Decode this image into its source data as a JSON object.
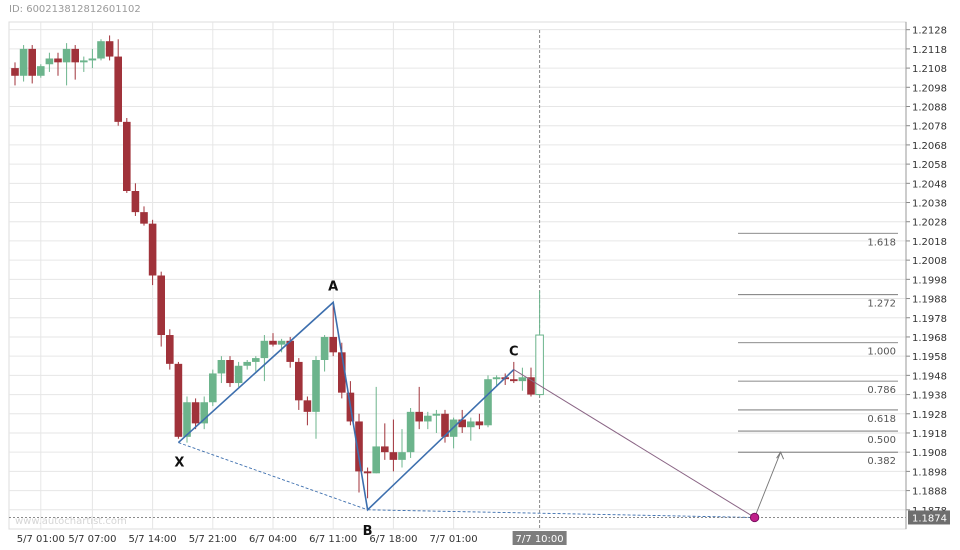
{
  "header": {
    "id_prefix": "ID: ",
    "id_value": "600213812812601102"
  },
  "watermark": "www.autochartist.com",
  "colors": {
    "bull": "#6cb48c",
    "bear": "#a0323a",
    "pattern": "#3d6fae",
    "projection": "#8a6585",
    "target": "#c0208a",
    "grid": "#e6e6e6",
    "axis_text": "#333333",
    "fib_line": "#666666"
  },
  "chart_data": {
    "type": "candlestick",
    "title": "",
    "ylim": [
      1.1868,
      1.2132
    ],
    "y_ticks": [
      "1.2128",
      "1.2118",
      "1.2108",
      "1.2098",
      "1.2088",
      "1.2078",
      "1.2068",
      "1.2058",
      "1.2048",
      "1.2038",
      "1.2028",
      "1.2018",
      "1.2008",
      "1.1998",
      "1.1988",
      "1.1978",
      "1.1968",
      "1.1958",
      "1.1948",
      "1.1938",
      "1.1928",
      "1.1918",
      "1.1908",
      "1.1898",
      "1.1888",
      "1.1878"
    ],
    "x_ticks": [
      "5/7 01:00",
      "5/7 07:00",
      "5/7 14:00",
      "5/7 21:00",
      "6/7 04:00",
      "6/7 11:00",
      "6/7 18:00",
      "7/7 01:00",
      "7/7 10:00"
    ],
    "x_tick_index": [
      3,
      9,
      16,
      23,
      30,
      37,
      44,
      51,
      61
    ],
    "current_time_label": "7/7 10:00",
    "current_price_label": "1.1874",
    "candles": [
      {
        "o": 1.2108,
        "h": 1.2111,
        "l": 1.2099,
        "c": 1.2104
      },
      {
        "o": 1.2104,
        "h": 1.212,
        "l": 1.2101,
        "c": 1.2118
      },
      {
        "o": 1.2118,
        "h": 1.212,
        "l": 1.21,
        "c": 1.2104
      },
      {
        "o": 1.2104,
        "h": 1.211,
        "l": 1.2103,
        "c": 1.2109
      },
      {
        "o": 1.211,
        "h": 1.2116,
        "l": 1.2106,
        "c": 1.2113
      },
      {
        "o": 1.2113,
        "h": 1.2116,
        "l": 1.2104,
        "c": 1.2111
      },
      {
        "o": 1.2111,
        "h": 1.2121,
        "l": 1.2099,
        "c": 1.2118
      },
      {
        "o": 1.2118,
        "h": 1.212,
        "l": 1.2102,
        "c": 1.2111
      },
      {
        "o": 1.2111,
        "h": 1.2114,
        "l": 1.2106,
        "c": 1.2112
      },
      {
        "o": 1.2112,
        "h": 1.2118,
        "l": 1.2108,
        "c": 1.2113
      },
      {
        "o": 1.2113,
        "h": 1.2123,
        "l": 1.2112,
        "c": 1.2122
      },
      {
        "o": 1.2122,
        "h": 1.2125,
        "l": 1.2112,
        "c": 1.2114
      },
      {
        "o": 1.2114,
        "h": 1.2123,
        "l": 1.2078,
        "c": 1.208
      },
      {
        "o": 1.208,
        "h": 1.2082,
        "l": 1.2043,
        "c": 1.2044
      },
      {
        "o": 1.2044,
        "h": 1.2048,
        "l": 1.2031,
        "c": 1.2033
      },
      {
        "o": 1.2033,
        "h": 1.2036,
        "l": 1.2026,
        "c": 1.2027
      },
      {
        "o": 1.2027,
        "h": 1.2029,
        "l": 1.1995,
        "c": 1.2
      },
      {
        "o": 1.2,
        "h": 1.2002,
        "l": 1.1963,
        "c": 1.1969
      },
      {
        "o": 1.1969,
        "h": 1.1972,
        "l": 1.1951,
        "c": 1.1954
      },
      {
        "o": 1.1954,
        "h": 1.1955,
        "l": 1.1915,
        "c": 1.1916
      },
      {
        "o": 1.1916,
        "h": 1.1937,
        "l": 1.1913,
        "c": 1.1934
      },
      {
        "o": 1.1934,
        "h": 1.1936,
        "l": 1.192,
        "c": 1.1923
      },
      {
        "o": 1.1923,
        "h": 1.1937,
        "l": 1.192,
        "c": 1.1934
      },
      {
        "o": 1.1934,
        "h": 1.1951,
        "l": 1.1932,
        "c": 1.1949
      },
      {
        "o": 1.1949,
        "h": 1.1958,
        "l": 1.1944,
        "c": 1.1956
      },
      {
        "o": 1.1956,
        "h": 1.1958,
        "l": 1.1942,
        "c": 1.1944
      },
      {
        "o": 1.1944,
        "h": 1.1955,
        "l": 1.1942,
        "c": 1.1953
      },
      {
        "o": 1.1953,
        "h": 1.1956,
        "l": 1.1951,
        "c": 1.1955
      },
      {
        "o": 1.1955,
        "h": 1.1958,
        "l": 1.195,
        "c": 1.1957
      },
      {
        "o": 1.1957,
        "h": 1.1969,
        "l": 1.1945,
        "c": 1.1966
      },
      {
        "o": 1.1966,
        "h": 1.197,
        "l": 1.1963,
        "c": 1.1964
      },
      {
        "o": 1.1964,
        "h": 1.1967,
        "l": 1.196,
        "c": 1.1966
      },
      {
        "o": 1.1966,
        "h": 1.1968,
        "l": 1.1952,
        "c": 1.1955
      },
      {
        "o": 1.1955,
        "h": 1.1957,
        "l": 1.193,
        "c": 1.1935
      },
      {
        "o": 1.1935,
        "h": 1.1937,
        "l": 1.1922,
        "c": 1.1929
      },
      {
        "o": 1.1929,
        "h": 1.1958,
        "l": 1.1915,
        "c": 1.1956
      },
      {
        "o": 1.1956,
        "h": 1.1969,
        "l": 1.195,
        "c": 1.1968
      },
      {
        "o": 1.1968,
        "h": 1.1985,
        "l": 1.1958,
        "c": 1.196
      },
      {
        "o": 1.196,
        "h": 1.1965,
        "l": 1.1936,
        "c": 1.1939
      },
      {
        "o": 1.1939,
        "h": 1.1945,
        "l": 1.1922,
        "c": 1.1924
      },
      {
        "o": 1.1924,
        "h": 1.1928,
        "l": 1.1887,
        "c": 1.1898
      },
      {
        "o": 1.1898,
        "h": 1.19,
        "l": 1.1884,
        "c": 1.1897
      },
      {
        "o": 1.1897,
        "h": 1.1942,
        "l": 1.1897,
        "c": 1.1911
      },
      {
        "o": 1.1911,
        "h": 1.1923,
        "l": 1.1904,
        "c": 1.1908
      },
      {
        "o": 1.1908,
        "h": 1.1925,
        "l": 1.1898,
        "c": 1.1904
      },
      {
        "o": 1.1904,
        "h": 1.192,
        "l": 1.19,
        "c": 1.1908
      },
      {
        "o": 1.1908,
        "h": 1.1931,
        "l": 1.1905,
        "c": 1.1929
      },
      {
        "o": 1.1929,
        "h": 1.1942,
        "l": 1.192,
        "c": 1.1924
      },
      {
        "o": 1.1924,
        "h": 1.1929,
        "l": 1.192,
        "c": 1.1927
      },
      {
        "o": 1.1927,
        "h": 1.193,
        "l": 1.1918,
        "c": 1.1928
      },
      {
        "o": 1.1928,
        "h": 1.193,
        "l": 1.1913,
        "c": 1.1916
      },
      {
        "o": 1.1916,
        "h": 1.1926,
        "l": 1.191,
        "c": 1.1925
      },
      {
        "o": 1.1925,
        "h": 1.193,
        "l": 1.1918,
        "c": 1.1921
      },
      {
        "o": 1.1921,
        "h": 1.1926,
        "l": 1.1914,
        "c": 1.1924
      },
      {
        "o": 1.1924,
        "h": 1.1928,
        "l": 1.192,
        "c": 1.1922
      },
      {
        "o": 1.1922,
        "h": 1.1948,
        "l": 1.1921,
        "c": 1.1946
      },
      {
        "o": 1.1946,
        "h": 1.1948,
        "l": 1.1942,
        "c": 1.1947
      },
      {
        "o": 1.1947,
        "h": 1.1949,
        "l": 1.1943,
        "c": 1.1946
      },
      {
        "o": 1.1946,
        "h": 1.1955,
        "l": 1.1944,
        "c": 1.1945
      },
      {
        "o": 1.1945,
        "h": 1.1952,
        "l": 1.194,
        "c": 1.1947
      },
      {
        "o": 1.1947,
        "h": 1.1952,
        "l": 1.1937,
        "c": 1.1938
      },
      {
        "o": 1.1938,
        "h": 1.1992,
        "l": 1.1937,
        "c": 1.1969
      }
    ],
    "pattern_points": [
      {
        "label": "X",
        "index": 19,
        "price": 1.1913
      },
      {
        "label": "A",
        "index": 37,
        "price": 1.1986
      },
      {
        "label": "B",
        "index": 41,
        "price": 1.1878
      },
      {
        "label": "C",
        "index": 58,
        "price": 1.1951
      }
    ],
    "target": {
      "index": 86,
      "price": 1.1874
    },
    "fib_levels": [
      {
        "label": "1.618",
        "price": 1.2022
      },
      {
        "label": "1.272",
        "price": 1.199
      },
      {
        "label": "1.000",
        "price": 1.1965
      },
      {
        "label": "0.786",
        "price": 1.1945
      },
      {
        "label": "0.618",
        "price": 1.193
      },
      {
        "label": "0.500",
        "price": 1.1919
      },
      {
        "label": "0.382",
        "price": 1.1908
      }
    ]
  }
}
